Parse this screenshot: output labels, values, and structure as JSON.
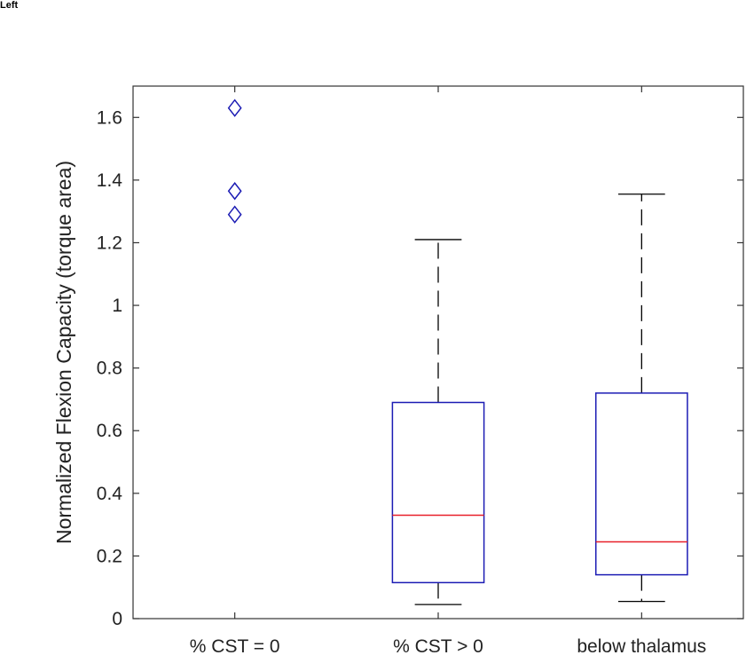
{
  "panel_label": "Left",
  "chart_data": {
    "type": "box",
    "title": "",
    "xlabel": "",
    "ylabel": "Normalized Flexion Capacity (torque area)",
    "ylim": [
      0,
      1.7
    ],
    "yticks": [
      0,
      0.2,
      0.4,
      0.6,
      0.8,
      1,
      1.2,
      1.4,
      1.6
    ],
    "ytick_labels": [
      "0",
      "0.2",
      "0.4",
      "0.6",
      "0.8",
      "1",
      "1.2",
      "1.4",
      "1.6"
    ],
    "categories": [
      "% CST = 0",
      "% CST > 0",
      "below thalamus"
    ],
    "grid": false,
    "colors": {
      "box": "#1c1cb4",
      "median": "#e8202a",
      "whisker": "#000000",
      "outlier": "#1c1cb4",
      "axis": "#333333"
    },
    "groups": [
      {
        "category": "% CST = 0",
        "outliers": [
          1.63,
          1.365,
          1.29
        ]
      },
      {
        "category": "% CST > 0",
        "whisker_low": 0.045,
        "q1": 0.115,
        "median": 0.33,
        "q3": 0.69,
        "whisker_high": 1.21,
        "outliers": []
      },
      {
        "category": "below thalamus",
        "whisker_low": 0.055,
        "q1": 0.14,
        "median": 0.245,
        "q3": 0.72,
        "whisker_high": 1.355,
        "outliers": []
      }
    ]
  }
}
